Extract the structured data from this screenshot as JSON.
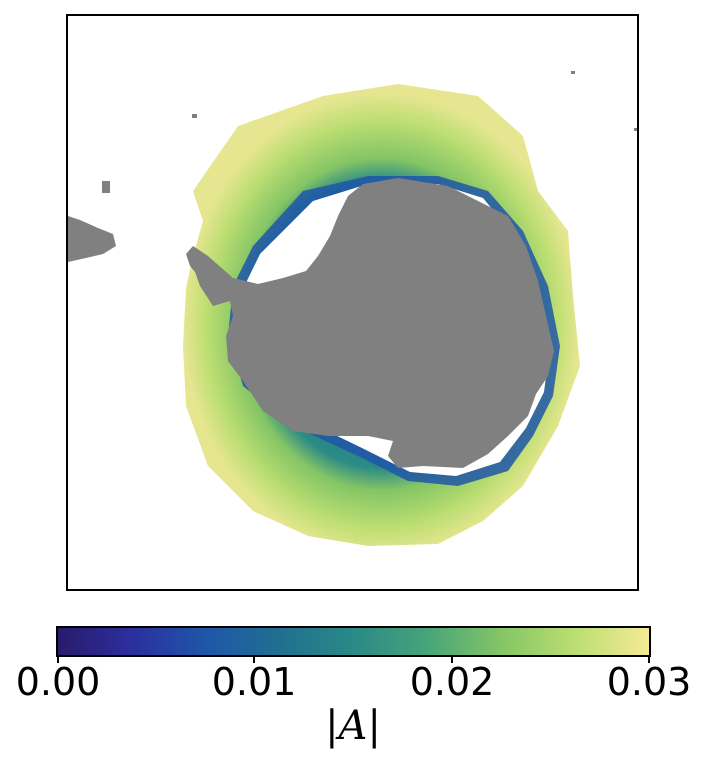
{
  "colors": {
    "land": "#808080",
    "frame": "#000000",
    "colormap": [
      "#2a1b6b",
      "#2b2f9e",
      "#1f56a8",
      "#206f90",
      "#2a8a86",
      "#47a47a",
      "#84c565",
      "#bcde72",
      "#f5ea96"
    ]
  },
  "colorbar": {
    "tick_labels": [
      "0.00",
      "0.01",
      "0.02",
      "0.03"
    ],
    "label": "|A|",
    "range": [
      0.0,
      0.03
    ]
  },
  "map": {
    "projection": "south-polar-stereographic",
    "field_description": "sea-ice amplitude |A| around Antarctica"
  }
}
